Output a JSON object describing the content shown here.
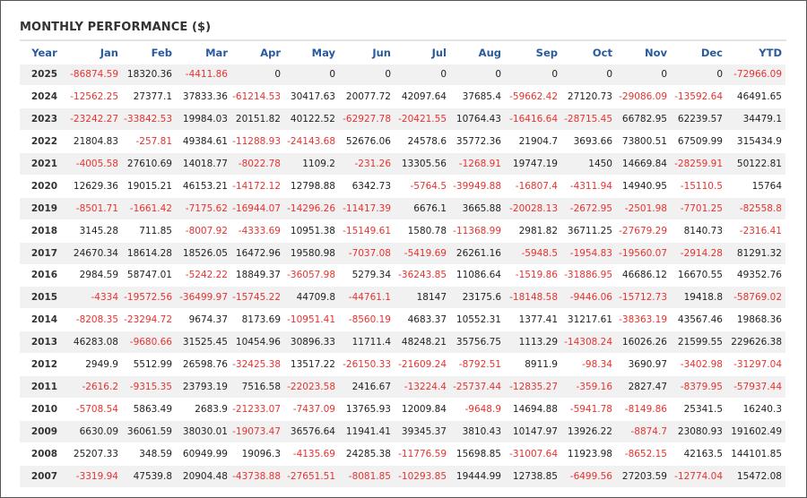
{
  "title": "MONTHLY PERFORMANCE ($)",
  "colors": {
    "header": "#2a5a9e",
    "negative": "#e8322f",
    "text": "#222222",
    "stripe": "#f1f1f1"
  },
  "columns": [
    "Year",
    "Jan",
    "Feb",
    "Mar",
    "Apr",
    "May",
    "Jun",
    "Jul",
    "Aug",
    "Sep",
    "Oct",
    "Nov",
    "Dec",
    "YTD"
  ],
  "rows": [
    [
      "2025",
      "-86874.59",
      "18320.36",
      "-4411.86",
      "0",
      "0",
      "0",
      "0",
      "0",
      "0",
      "0",
      "0",
      "0",
      "-72966.09"
    ],
    [
      "2024",
      "-12562.25",
      "27377.1",
      "37833.36",
      "-61214.53",
      "30417.63",
      "20077.72",
      "42097.64",
      "37685.4",
      "-59662.42",
      "27120.73",
      "-29086.09",
      "-13592.64",
      "46491.65"
    ],
    [
      "2023",
      "-23242.27",
      "-33842.53",
      "19984.03",
      "20151.82",
      "40122.52",
      "-62927.78",
      "-20421.55",
      "10764.43",
      "-16416.64",
      "-28715.45",
      "66782.95",
      "62239.57",
      "34479.1"
    ],
    [
      "2022",
      "21804.83",
      "-257.81",
      "49384.61",
      "-11288.93",
      "-24143.68",
      "52676.06",
      "24578.6",
      "35772.36",
      "21904.7",
      "3693.66",
      "73800.51",
      "67509.99",
      "315434.9"
    ],
    [
      "2021",
      "-4005.58",
      "27610.69",
      "14018.77",
      "-8022.78",
      "1109.2",
      "-231.26",
      "13305.56",
      "-1268.91",
      "19747.19",
      "1450",
      "14669.84",
      "-28259.91",
      "50122.81"
    ],
    [
      "2020",
      "12629.36",
      "19015.21",
      "46153.21",
      "-14172.12",
      "12798.88",
      "6342.73",
      "-5764.5",
      "-39949.88",
      "-16807.4",
      "-4311.94",
      "14940.95",
      "-15110.5",
      "15764"
    ],
    [
      "2019",
      "-8501.71",
      "-1661.42",
      "-7175.62",
      "-16944.07",
      "-14296.26",
      "-11417.39",
      "6676.1",
      "3665.88",
      "-20028.13",
      "-2672.95",
      "-2501.98",
      "-7701.25",
      "-82558.8"
    ],
    [
      "2018",
      "3145.28",
      "711.85",
      "-8007.92",
      "-4333.69",
      "10951.38",
      "-15149.61",
      "1580.78",
      "-11368.99",
      "2981.82",
      "36711.25",
      "-27679.29",
      "8140.73",
      "-2316.41"
    ],
    [
      "2017",
      "24670.34",
      "18614.28",
      "18526.05",
      "16472.96",
      "19580.98",
      "-7037.08",
      "-5419.69",
      "26261.16",
      "-5948.5",
      "-1954.83",
      "-19560.07",
      "-2914.28",
      "81291.32"
    ],
    [
      "2016",
      "2984.59",
      "58747.01",
      "-5242.22",
      "18849.37",
      "-36057.98",
      "5279.34",
      "-36243.85",
      "11086.64",
      "-1519.86",
      "-31886.95",
      "46686.12",
      "16670.55",
      "49352.76"
    ],
    [
      "2015",
      "-4334",
      "-19572.56",
      "-36499.97",
      "-15745.22",
      "44709.8",
      "-44761.1",
      "18147",
      "23175.6",
      "-18148.58",
      "-9446.06",
      "-15712.73",
      "19418.8",
      "-58769.02"
    ],
    [
      "2014",
      "-8208.35",
      "-23294.72",
      "9674.37",
      "8173.69",
      "-10951.41",
      "-8560.19",
      "4683.37",
      "10552.31",
      "1377.41",
      "31217.61",
      "-38363.19",
      "43567.46",
      "19868.36"
    ],
    [
      "2013",
      "46283.08",
      "-9680.66",
      "31525.45",
      "10454.96",
      "30896.33",
      "11711.4",
      "48248.21",
      "35756.75",
      "1113.29",
      "-14308.24",
      "16026.26",
      "21599.55",
      "229626.38"
    ],
    [
      "2012",
      "2949.9",
      "5512.99",
      "26598.76",
      "-32425.38",
      "13517.22",
      "-26150.33",
      "-21609.24",
      "-8792.51",
      "8911.9",
      "-98.34",
      "3690.97",
      "-3402.98",
      "-31297.04"
    ],
    [
      "2011",
      "-2616.2",
      "-9315.35",
      "23793.19",
      "7516.58",
      "-22023.58",
      "2416.67",
      "-13224.4",
      "-25737.44",
      "-12835.27",
      "-359.16",
      "2827.47",
      "-8379.95",
      "-57937.44"
    ],
    [
      "2010",
      "-5708.54",
      "5863.49",
      "2683.9",
      "-21233.07",
      "-7437.09",
      "13765.93",
      "12009.84",
      "-9648.9",
      "14694.88",
      "-5941.78",
      "-8149.86",
      "25341.5",
      "16240.3"
    ],
    [
      "2009",
      "6630.09",
      "36061.59",
      "38030.01",
      "-19073.47",
      "36576.64",
      "11941.41",
      "39345.37",
      "3810.43",
      "10147.97",
      "13926.22",
      "-8874.7",
      "23080.93",
      "191602.49"
    ],
    [
      "2008",
      "25207.33",
      "348.59",
      "60949.99",
      "19096.3",
      "-4135.69",
      "24285.38",
      "-11776.59",
      "15698.85",
      "-31007.64",
      "11923.98",
      "-8652.15",
      "42163.5",
      "144101.85"
    ],
    [
      "2007",
      "-3319.94",
      "47539.8",
      "20904.48",
      "-43738.88",
      "-27651.51",
      "-8081.85",
      "-10293.85",
      "19444.99",
      "12738.85",
      "-6499.56",
      "27203.59",
      "-12774.04",
      "15472.08"
    ]
  ]
}
